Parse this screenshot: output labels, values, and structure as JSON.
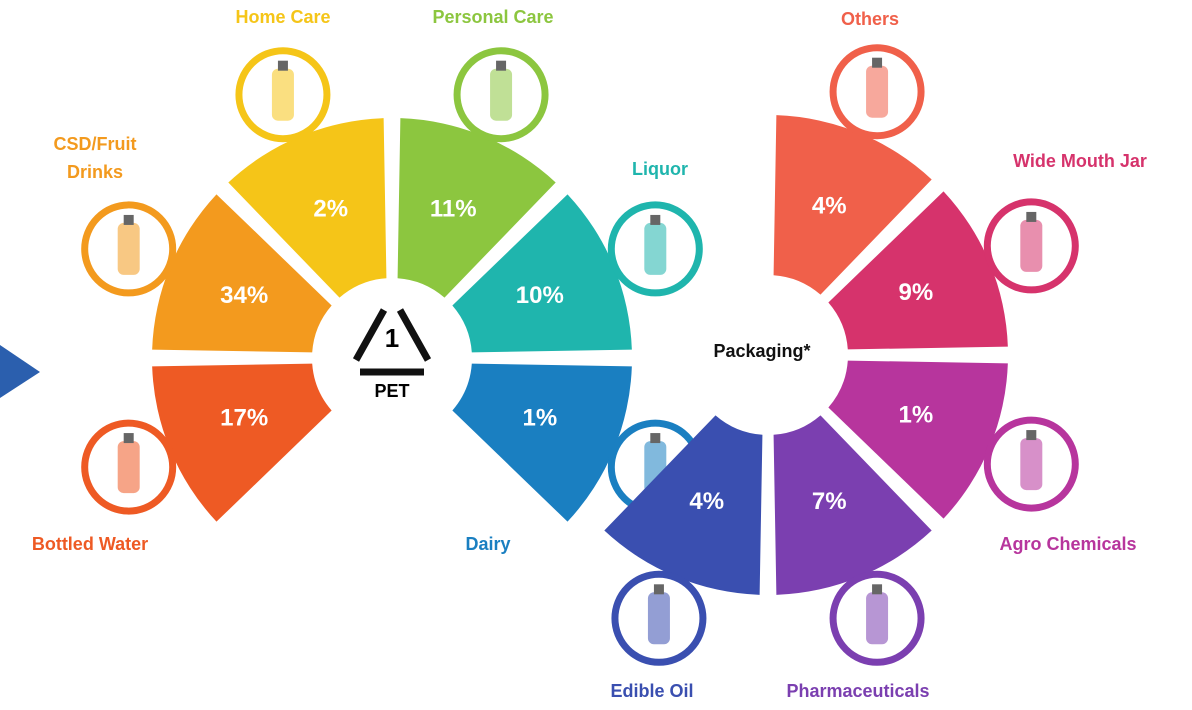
{
  "center": {
    "symbol_number": "1",
    "symbol_label": "PET",
    "packaging_label": "Packaging*"
  },
  "segments": [
    {
      "label": "Home Care",
      "value_label": "2%"
    },
    {
      "label": "Personal Care",
      "value_label": "11%"
    },
    {
      "label": "Liquor",
      "value_label": "10%"
    },
    {
      "label": "Dairy",
      "value_label": "1%"
    },
    {
      "label": "Bottled Water",
      "value_label": "17%"
    },
    {
      "label": [
        "CSD/Fruit",
        "Drinks"
      ],
      "value_label": "34%"
    },
    {
      "label": "Others",
      "value_label": "4%"
    },
    {
      "label": "Wide Mouth Jar",
      "value_label": "9%"
    },
    {
      "label": "Agro Chemicals",
      "value_label": "1%"
    },
    {
      "label": "Pharmaceuticals",
      "value_label": "7%"
    },
    {
      "label": "Edible Oil",
      "value_label": "4%"
    }
  ]
}
